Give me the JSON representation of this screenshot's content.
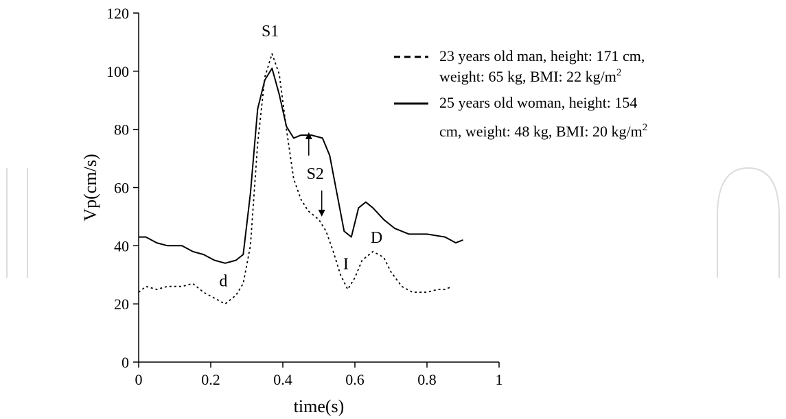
{
  "chart_data": {
    "type": "line",
    "xlabel": "time(s)",
    "ylabel": "Vp(cm/s)",
    "xlim": [
      0,
      1
    ],
    "ylim": [
      0,
      120
    ],
    "xticks": [
      0,
      0.2,
      0.4,
      0.6,
      0.8,
      1
    ],
    "xtick_labels": [
      "0",
      "0.2",
      "0.4",
      "0.6",
      "0.8",
      "1"
    ],
    "yticks": [
      0,
      20,
      40,
      60,
      80,
      100,
      120
    ],
    "ytick_labels": [
      "0",
      "20",
      "40",
      "60",
      "80",
      "100",
      "120"
    ],
    "grid": false,
    "legend_position": "top-right",
    "series": [
      {
        "name": "23 years old man, height: 171 cm, weight: 65 kg, BMI: 22 kg/m²",
        "style": "dashed",
        "x": [
          0,
          0.02,
          0.05,
          0.08,
          0.12,
          0.15,
          0.18,
          0.21,
          0.24,
          0.27,
          0.29,
          0.31,
          0.33,
          0.35,
          0.37,
          0.39,
          0.41,
          0.43,
          0.45,
          0.47,
          0.5,
          0.52,
          0.54,
          0.56,
          0.58,
          0.6,
          0.62,
          0.65,
          0.68,
          0.7,
          0.73,
          0.76,
          0.8,
          0.83,
          0.85,
          0.87
        ],
        "y": [
          24,
          26,
          25,
          26,
          26,
          27,
          24,
          22,
          20,
          23,
          27,
          40,
          75,
          98,
          106,
          99,
          80,
          63,
          56,
          52,
          49,
          45,
          38,
          30,
          25,
          29,
          35,
          38,
          36,
          31,
          26,
          24,
          24,
          25,
          25,
          26
        ]
      },
      {
        "name": "25 years old woman, height: 154 cm, weight: 48 kg, BMI: 20 kg/m²",
        "style": "solid",
        "x": [
          0,
          0.02,
          0.05,
          0.08,
          0.12,
          0.15,
          0.18,
          0.21,
          0.24,
          0.27,
          0.29,
          0.31,
          0.33,
          0.35,
          0.37,
          0.39,
          0.41,
          0.43,
          0.45,
          0.48,
          0.51,
          0.53,
          0.55,
          0.57,
          0.59,
          0.61,
          0.63,
          0.65,
          0.68,
          0.71,
          0.75,
          0.8,
          0.85,
          0.88,
          0.9
        ],
        "y": [
          43,
          43,
          41,
          40,
          40,
          38,
          37,
          35,
          34,
          35,
          37,
          58,
          87,
          97,
          101,
          92,
          81,
          77,
          78,
          78,
          77,
          71,
          58,
          45,
          43,
          53,
          55,
          53,
          49,
          46,
          44,
          44,
          43,
          41,
          42
        ]
      }
    ],
    "annotations": [
      {
        "text": "S1",
        "x": 0.365,
        "y": 112
      },
      {
        "text": "S2",
        "x": 0.49,
        "y": 63
      },
      {
        "text": "d",
        "x": 0.235,
        "y": 26
      },
      {
        "text": "I",
        "x": 0.575,
        "y": 32
      },
      {
        "text": "D",
        "x": 0.66,
        "y": 41
      }
    ],
    "arrows": [
      {
        "from": [
          0.472,
          71
        ],
        "to": [
          0.472,
          79
        ]
      },
      {
        "from": [
          0.508,
          59
        ],
        "to": [
          0.508,
          50
        ]
      }
    ]
  },
  "legend": [
    {
      "line1": "23 years old man, height: 171 cm,",
      "line2": "weight: 65 kg, BMI: 22 kg/m",
      "sup": "2",
      "style": "dashed"
    },
    {
      "line1": "25 years old woman, height: 154",
      "line2": "cm, weight: 48 kg, BMI: 20 kg/m",
      "sup": "2",
      "style": "solid"
    }
  ]
}
